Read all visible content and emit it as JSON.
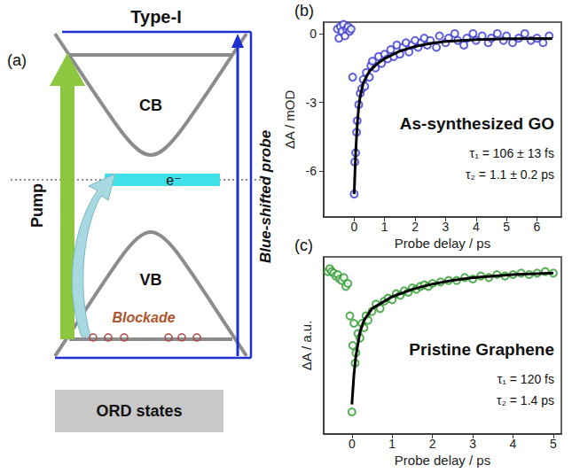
{
  "diagram": {
    "panel": "(a)",
    "title": "Type-I",
    "cb": "CB",
    "vb": "VB",
    "electron": "e⁻",
    "pump": "Pump",
    "probe": "Blue-shifted probe",
    "blockade": "Blockade",
    "ord": "ORD states"
  },
  "chart_data": [
    {
      "type": "scatter",
      "panel": "(b)",
      "title": "As-synthesized GO",
      "annotations": [
        "τ₁ = 106 ± 13 fs",
        "τ₂ = 1.1 ± 0.2 ps"
      ],
      "xlabel": "Probe delay / ps",
      "ylabel": "ΔA / mOD",
      "xlim": [
        -1,
        6.8
      ],
      "xticks": [
        0,
        1,
        2,
        3,
        4,
        5,
        6
      ],
      "ylim": [
        -8,
        0.5
      ],
      "yticks": [
        -6,
        -3,
        0
      ],
      "grid": false,
      "series": [
        {
          "type": "scatter",
          "color": "#3a3ad0",
          "marker": "open_circle",
          "x": [
            -0.55,
            -0.5,
            -0.45,
            -0.4,
            -0.35,
            -0.3,
            -0.25,
            -0.2,
            -0.15,
            -0.1,
            -0.05,
            0,
            0.02,
            0.05,
            0.08,
            0.1,
            0.15,
            0.2,
            0.25,
            0.3,
            0.35,
            0.4,
            0.5,
            0.55,
            0.6,
            0.7,
            0.8,
            0.9,
            1.0,
            1.1,
            1.2,
            1.3,
            1.4,
            1.5,
            1.6,
            1.7,
            1.8,
            1.9,
            2.0,
            2.1,
            2.2,
            2.3,
            2.4,
            2.5,
            2.7,
            2.8,
            3.0,
            3.1,
            3.3,
            3.4,
            3.6,
            3.7,
            3.9,
            4.0,
            4.2,
            4.4,
            4.5,
            4.7,
            4.9,
            5.0,
            5.2,
            5.4,
            5.6,
            5.8,
            6.0,
            6.2,
            6.4
          ],
          "values": [
            0.2,
            -0.2,
            0.3,
            0.1,
            0.4,
            -0.1,
            0.2,
            0.3,
            0.1,
            0.2,
            -1.9,
            -7.0,
            -5.6,
            -5.2,
            -4.3,
            -3.8,
            -3.1,
            -2.6,
            -2.4,
            -2.0,
            -2.3,
            -1.7,
            -1.9,
            -1.4,
            -1.2,
            -1.5,
            -1.0,
            -1.3,
            -0.9,
            -1.1,
            -0.7,
            -1.0,
            -0.5,
            -0.9,
            -0.6,
            -0.4,
            -0.8,
            -0.5,
            -0.3,
            -0.6,
            -0.4,
            -0.2,
            -0.5,
            -0.3,
            -0.6,
            -0.1,
            -0.4,
            -0.2,
            0.0,
            -0.3,
            -0.5,
            -0.2,
            0.0,
            -0.3,
            -0.1,
            -0.4,
            -0.2,
            0.0,
            -0.3,
            -0.1,
            -0.4,
            -0.2,
            0.0,
            -0.3,
            -0.2,
            -0.4,
            -0.1
          ]
        },
        {
          "type": "line",
          "color": "#000000",
          "line_style": "solid",
          "x": [
            0,
            0.05,
            0.1,
            0.15,
            0.2,
            0.3,
            0.5,
            0.75,
            1.0,
            1.5,
            2.0,
            2.5,
            3.0,
            4.0,
            5.0,
            6.5
          ],
          "values": [
            -7.0,
            -5.17,
            -4.0,
            -3.2,
            -2.73,
            -2.14,
            -1.64,
            -1.32,
            -1.09,
            -0.76,
            -0.56,
            -0.43,
            -0.34,
            -0.26,
            -0.22,
            -0.21
          ]
        }
      ]
    },
    {
      "type": "scatter",
      "panel": "(c)",
      "title": "Pristine Graphene",
      "annotations": [
        "τ₁ = 120 fs",
        "τ₂ = 1.4 ps"
      ],
      "xlabel": "Probe delay / ps",
      "ylabel": "ΔA / a.u.",
      "xlim": [
        -0.7,
        5.2
      ],
      "xticks": [
        0,
        1,
        2,
        3,
        4,
        5
      ],
      "ylim": [
        -1.1,
        0.1
      ],
      "tick_labels": "x",
      "grid": false,
      "series": [
        {
          "type": "scatter",
          "color": "#2e9b2e",
          "marker": "open_circle",
          "x": [
            -0.6,
            -0.55,
            -0.5,
            -0.45,
            -0.4,
            -0.35,
            -0.3,
            -0.25,
            -0.2,
            -0.15,
            -0.1,
            -0.05,
            0,
            0.02,
            0.05,
            0.08,
            0.1,
            0.15,
            0.2,
            0.25,
            0.3,
            0.35,
            0.4,
            0.5,
            0.6,
            0.7,
            0.8,
            0.9,
            1.0,
            1.1,
            1.2,
            1.3,
            1.4,
            1.5,
            1.6,
            1.7,
            1.8,
            1.9,
            2.0,
            2.2,
            2.4,
            2.6,
            2.8,
            3.0,
            3.2,
            3.4,
            3.6,
            3.8,
            4.0,
            4.2,
            4.4,
            4.6,
            4.8,
            5.0
          ],
          "values": [
            0.0,
            0.02,
            0.0,
            -0.01,
            -0.03,
            -0.02,
            -0.05,
            -0.06,
            -0.04,
            -0.1,
            -0.08,
            -0.3,
            -0.95,
            -0.5,
            -0.35,
            -0.62,
            -0.55,
            -0.42,
            -0.45,
            -0.35,
            -0.38,
            -0.3,
            -0.33,
            -0.27,
            -0.22,
            -0.25,
            -0.2,
            -0.18,
            -0.19,
            -0.15,
            -0.16,
            -0.13,
            -0.14,
            -0.11,
            -0.12,
            -0.1,
            -0.09,
            -0.1,
            -0.08,
            -0.07,
            -0.06,
            -0.06,
            -0.04,
            -0.05,
            -0.03,
            -0.04,
            -0.02,
            -0.03,
            -0.02,
            -0.01,
            -0.02,
            -0.01,
            0.0,
            -0.01
          ]
        },
        {
          "type": "line",
          "color": "#000000",
          "line_style": "solid",
          "x": [
            0,
            0.05,
            0.1,
            0.2,
            0.3,
            0.5,
            0.75,
            1.0,
            1.5,
            2.0,
            2.5,
            3.0,
            4.0,
            5.0
          ],
          "values": [
            -0.9,
            -0.7,
            -0.57,
            -0.41,
            -0.33,
            -0.25,
            -0.21,
            -0.17,
            -0.12,
            -0.084,
            -0.059,
            -0.041,
            -0.02,
            -0.01
          ]
        }
      ]
    }
  ]
}
